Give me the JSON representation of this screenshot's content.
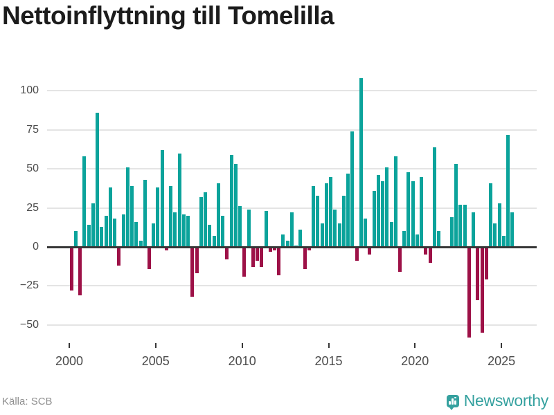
{
  "title": "Nettoinflyttning till Tomelilla",
  "footer": {
    "source": "Källa: SCB",
    "brand": "Newsworthy"
  },
  "colors": {
    "positive": "#0ba39b",
    "negative": "#9d1147",
    "axis": "#373737",
    "grid": "#e4e4e4",
    "title": "#1c1c1c",
    "axis_label": "#4b4b4b",
    "source_text": "#8f8f8f",
    "brand_teal": "#35a19f"
  },
  "chart_data": {
    "type": "bar",
    "title": "Nettoinflyttning till Tomelilla",
    "xlabel": "",
    "ylabel": "",
    "unit": "persons per quarter",
    "ylim": [
      -60,
      110
    ],
    "y_ticks": [
      100,
      75,
      50,
      25,
      0,
      -25,
      -50
    ],
    "x_ticks": [
      2000,
      2005,
      2010,
      2015,
      2020,
      2025
    ],
    "grid": true,
    "years": [
      {
        "year": 2000,
        "values": [
          -28,
          10,
          -31,
          58
        ]
      },
      {
        "year": 2001,
        "values": [
          14,
          28,
          86,
          13
        ]
      },
      {
        "year": 2002,
        "values": [
          20,
          38,
          18,
          -12
        ]
      },
      {
        "year": 2003,
        "values": [
          21,
          51,
          39,
          16
        ]
      },
      {
        "year": 2004,
        "values": [
          4,
          43,
          -14,
          15
        ]
      },
      {
        "year": 2005,
        "values": [
          38,
          62,
          -2,
          39
        ]
      },
      {
        "year": 2006,
        "values": [
          22,
          60,
          21,
          20
        ]
      },
      {
        "year": 2007,
        "values": [
          -32,
          -17,
          32,
          35
        ]
      },
      {
        "year": 2008,
        "values": [
          14,
          7,
          41,
          20
        ]
      },
      {
        "year": 2009,
        "values": [
          -8,
          59,
          53,
          26
        ]
      },
      {
        "year": 2010,
        "values": [
          -19,
          24,
          -13,
          -9
        ]
      },
      {
        "year": 2011,
        "values": [
          -13,
          23,
          -3,
          -2
        ]
      },
      {
        "year": 2012,
        "values": [
          -18,
          8,
          4,
          22
        ]
      },
      {
        "year": 2013,
        "values": [
          1,
          11,
          -14,
          -2
        ]
      },
      {
        "year": 2014,
        "values": [
          39,
          33,
          15,
          41
        ]
      },
      {
        "year": 2015,
        "values": [
          45,
          24,
          15,
          33
        ]
      },
      {
        "year": 2016,
        "values": [
          47,
          74,
          -9,
          108
        ]
      },
      {
        "year": 2017,
        "values": [
          18,
          -5,
          36,
          46
        ]
      },
      {
        "year": 2018,
        "values": [
          42,
          51,
          16,
          58
        ]
      },
      {
        "year": 2019,
        "values": [
          -16,
          10,
          48,
          42
        ]
      },
      {
        "year": 2020,
        "values": [
          8,
          45,
          -5,
          -10
        ]
      },
      {
        "year": 2021,
        "values": [
          64,
          10,
          0,
          0
        ]
      },
      {
        "year": 2022,
        "values": [
          19,
          53,
          27,
          27
        ]
      },
      {
        "year": 2023,
        "values": [
          -58,
          22,
          -34,
          -55
        ]
      },
      {
        "year": 2024,
        "values": [
          -21,
          41,
          15,
          28
        ]
      },
      {
        "year": 2025,
        "values": [
          7,
          72,
          22
        ]
      }
    ]
  }
}
